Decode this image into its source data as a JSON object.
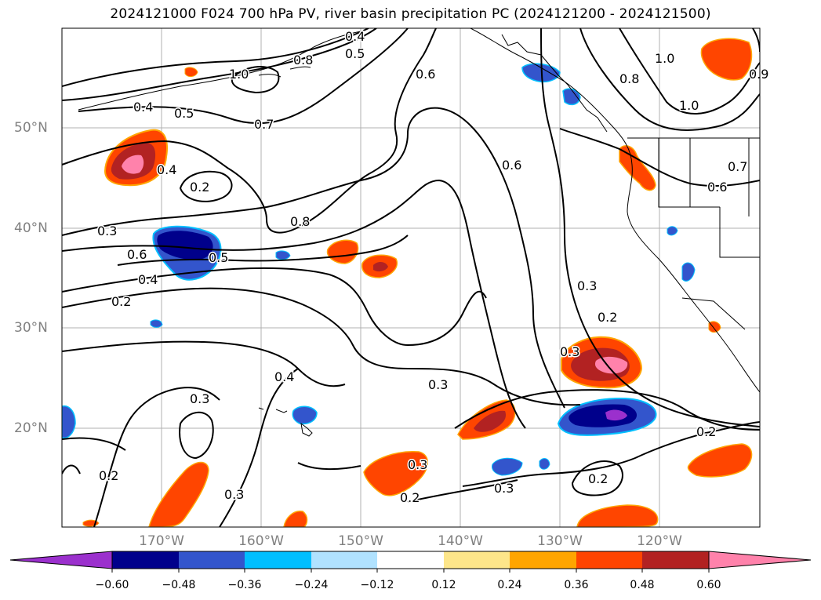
{
  "title": "2024121000 F024 700 hPa PV, river basin precipitation PC (2024121200 - 2024121500)",
  "map": {
    "lon_labels": [
      "170°W",
      "160°W",
      "150°W",
      "140°W",
      "130°W",
      "120°W"
    ],
    "lat_labels": [
      "50°N",
      "40°N",
      "30°N",
      "20°N"
    ],
    "gridline_color": "#b0b0b0"
  },
  "contour_labels": [
    "0.4",
    "0.5",
    "1.0",
    "0.8",
    "0.6",
    "0.8",
    "1.0",
    "0.9",
    "0.4",
    "0.5",
    "0.7",
    "0.4",
    "0.2",
    "0.8",
    "0.6",
    "0.3",
    "0.6",
    "0.5",
    "0.4",
    "0.2",
    "1.0",
    "0.7",
    "0.6",
    "0.3",
    "0.2",
    "0.3",
    "0.4",
    "0.3",
    "0.3",
    "0.2",
    "0.2",
    "0.3",
    "0.3",
    "0.3",
    "0.2",
    "0.2"
  ],
  "colorbar": {
    "tick_labels": [
      "−0.60",
      "−0.48",
      "−0.36",
      "−0.24",
      "−0.12",
      "0.12",
      "0.24",
      "0.36",
      "0.48",
      "0.60"
    ],
    "colors": [
      "#9b30cd",
      "#00008b",
      "#3355cc",
      "#00bfff",
      "#b0e2ff",
      "#ffffff",
      "#fde68a",
      "#ffa500",
      "#ff4500",
      "#b22222",
      "#ff82ab",
      "#ff82ab"
    ]
  }
}
